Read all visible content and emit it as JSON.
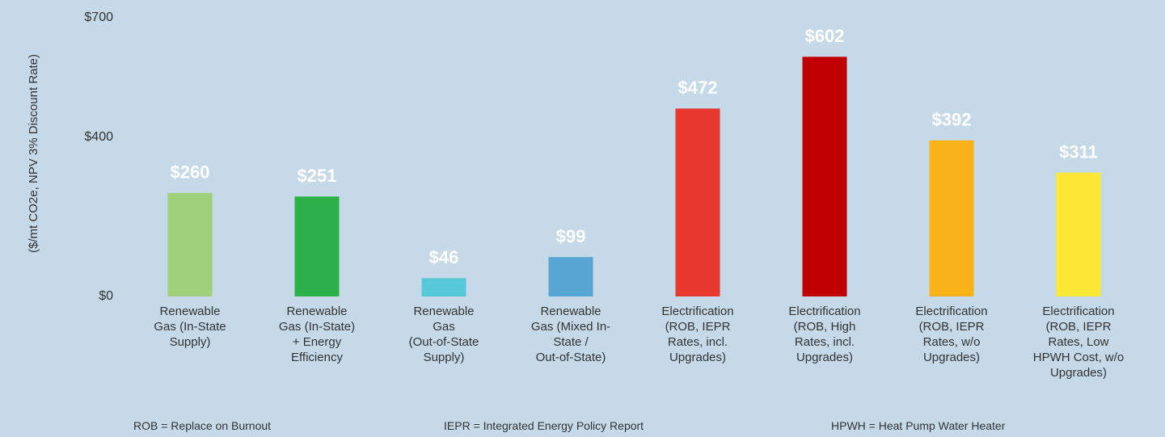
{
  "chart_data": {
    "type": "bar",
    "y_label": "($/mt CO2e, NPV 3% Discount Rate)",
    "categories": [
      "Renewable\nGas (In-State\nSupply)",
      "Renewable\nGas (In-State)\n+ Energy\nEfficiency",
      "Renewable\nGas\n(Out-of-State\nSupply)",
      "Renewable\nGas (Mixed In-\nState /\nOut-of-State)",
      "Electrification\n(ROB, IEPR\nRates, incl.\nUpgrades)",
      "Electrification\n(ROB, High\nRates, incl.\nUpgrades)",
      "Electrification\n(ROB, IEPR\nRates, w/o\nUpgrades)",
      "Electrification\n(ROB, IEPR\nRates, Low\nHPWH Cost, w/o\nUpgrades)"
    ],
    "values": [
      260,
      251,
      46,
      99,
      472,
      602,
      392,
      311
    ],
    "value_labels": [
      "$260",
      "$251",
      "$46",
      "$99",
      "$472",
      "$602",
      "$392",
      "$311"
    ],
    "colors": [
      "#9fd07a",
      "#2bb04a",
      "#56c8d8",
      "#57a5d3",
      "#e8392e",
      "#c00000",
      "#f9b21a",
      "#fde835"
    ],
    "ylim": [
      0,
      700
    ],
    "yticks": [
      {
        "value": 0,
        "label": "$0"
      },
      {
        "value": 400,
        "label": "$400"
      },
      {
        "value": 700,
        "label": "$700"
      }
    ],
    "grid": false,
    "footnotes": [
      "ROB = Replace on Burnout",
      "IEPR = Integrated Energy Policy Report",
      "HPWH = Heat Pump Water Heater"
    ]
  }
}
